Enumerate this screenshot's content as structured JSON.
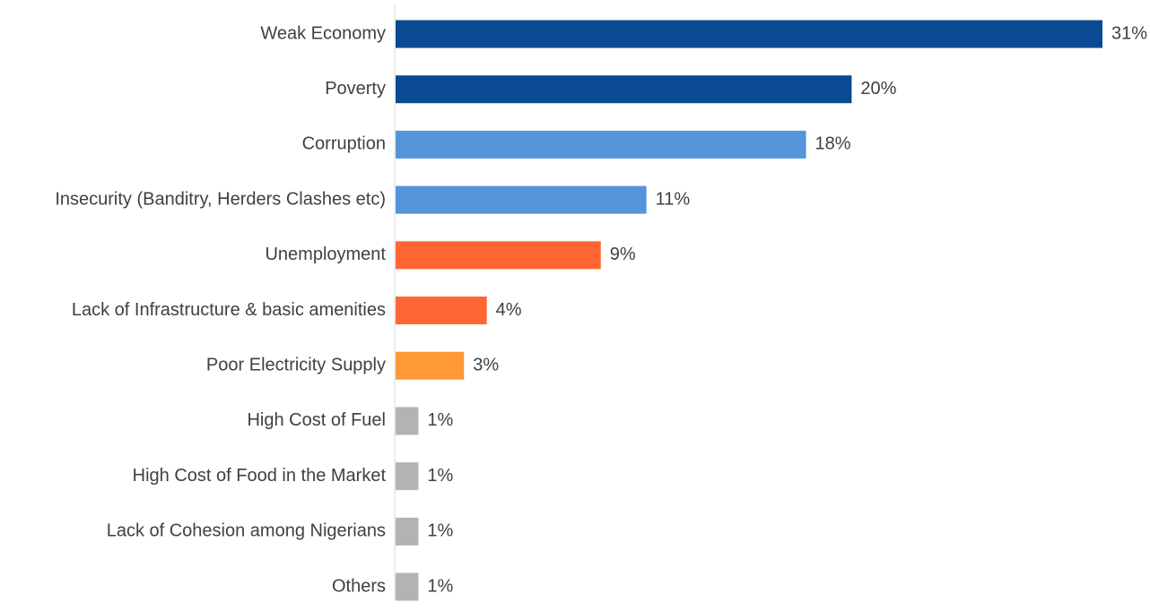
{
  "chart_data": {
    "type": "bar",
    "orientation": "horizontal",
    "categories": [
      "Weak Economy",
      "Poverty",
      "Corruption",
      "Insecurity (Banditry, Herders Clashes etc)",
      "Unemployment",
      "Lack of Infrastructure & basic amenities",
      "Poor Electricity Supply",
      "High Cost of Fuel",
      "High Cost of Food in the Market",
      "Lack of Cohesion among Nigerians",
      "Others"
    ],
    "values": [
      31,
      20,
      18,
      11,
      9,
      4,
      3,
      1,
      1,
      1,
      1
    ],
    "value_labels": [
      "31%",
      "20%",
      "18%",
      "11%",
      "9%",
      "4%",
      "3%",
      "1%",
      "1%",
      "1%",
      "1%"
    ],
    "bar_colors": [
      "#0A4A92",
      "#0A4A92",
      "#5594DA",
      "#5594DA",
      "#FF6633",
      "#FF6633",
      "#FF9933",
      "#B3B3B3",
      "#B3B3B3",
      "#B3B3B3",
      "#B3B3B3"
    ],
    "axis_color": "#D9D9D9",
    "xlim": [
      0,
      31
    ],
    "grid": false,
    "legend": "none"
  }
}
